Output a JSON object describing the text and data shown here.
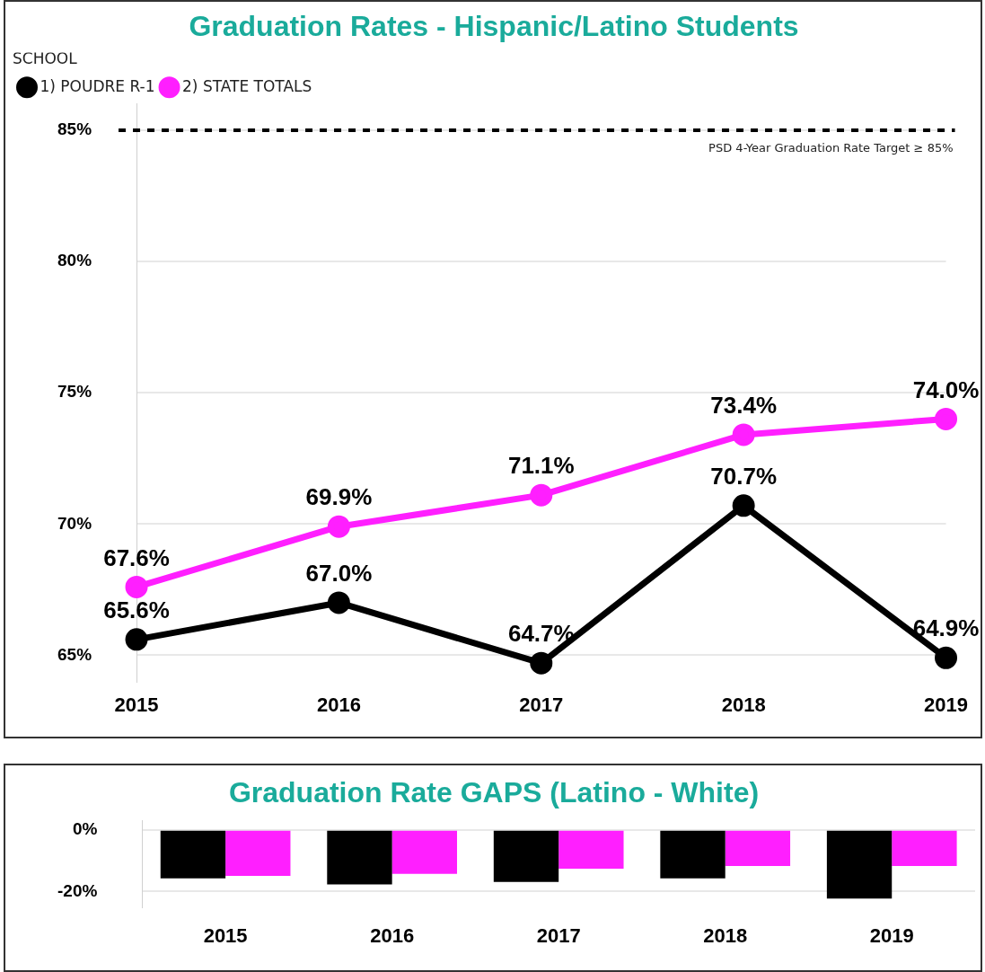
{
  "chart_data": [
    {
      "type": "line",
      "title": "Graduation Rates - Hispanic/Latino Students",
      "legend_title": "SCHOOL",
      "legend": "top left",
      "marker": "circle",
      "grid": "y",
      "categories": [
        "2015",
        "2016",
        "2017",
        "2018",
        "2019"
      ],
      "series": [
        {
          "name": "1) POUDRE R-1",
          "color": "#000000",
          "values": [
            65.6,
            67.0,
            64.7,
            70.7,
            64.9
          ],
          "value_labels": [
            "65.6%",
            "67.0%",
            "64.7%",
            "70.7%",
            "64.9%"
          ]
        },
        {
          "name": "2) STATE TOTALS",
          "color": "#ff1fff",
          "values": [
            67.6,
            69.9,
            71.1,
            73.4,
            74.0
          ],
          "value_labels": [
            "67.6%",
            "69.9%",
            "71.1%",
            "73.4%",
            "74.0%"
          ]
        }
      ],
      "ylim": [
        64,
        86
      ],
      "yticks": [
        {
          "value": 65,
          "label": "65%"
        },
        {
          "value": 70,
          "label": "70%"
        },
        {
          "value": 75,
          "label": "75%"
        },
        {
          "value": 80,
          "label": "80%"
        },
        {
          "value": 85,
          "label": "85%"
        }
      ],
      "ref_lines": [
        {
          "axis": "y",
          "value": 85,
          "label": "PSD 4-Year Graduation Rate Target ≥ 85%",
          "color": "#000000",
          "line_style": "dashed"
        }
      ]
    },
    {
      "type": "bar",
      "title": "Graduation Rate GAPS (Latino - White)",
      "legend": false,
      "grid": "y",
      "categories": [
        "2015",
        "2016",
        "2017",
        "2018",
        "2019"
      ],
      "series": [
        {
          "color": "#000000",
          "values": [
            -15.7,
            -17.7,
            -16.9,
            -15.7,
            -22.3
          ]
        },
        {
          "color": "#ff1fff",
          "values": [
            -14.9,
            -14.3,
            -12.6,
            -11.7,
            -11.7
          ]
        }
      ],
      "ylim": [
        -25,
        3
      ],
      "yticks": [
        {
          "value": -20,
          "label": "-20%"
        },
        {
          "value": 0,
          "label": "0%"
        }
      ]
    }
  ]
}
